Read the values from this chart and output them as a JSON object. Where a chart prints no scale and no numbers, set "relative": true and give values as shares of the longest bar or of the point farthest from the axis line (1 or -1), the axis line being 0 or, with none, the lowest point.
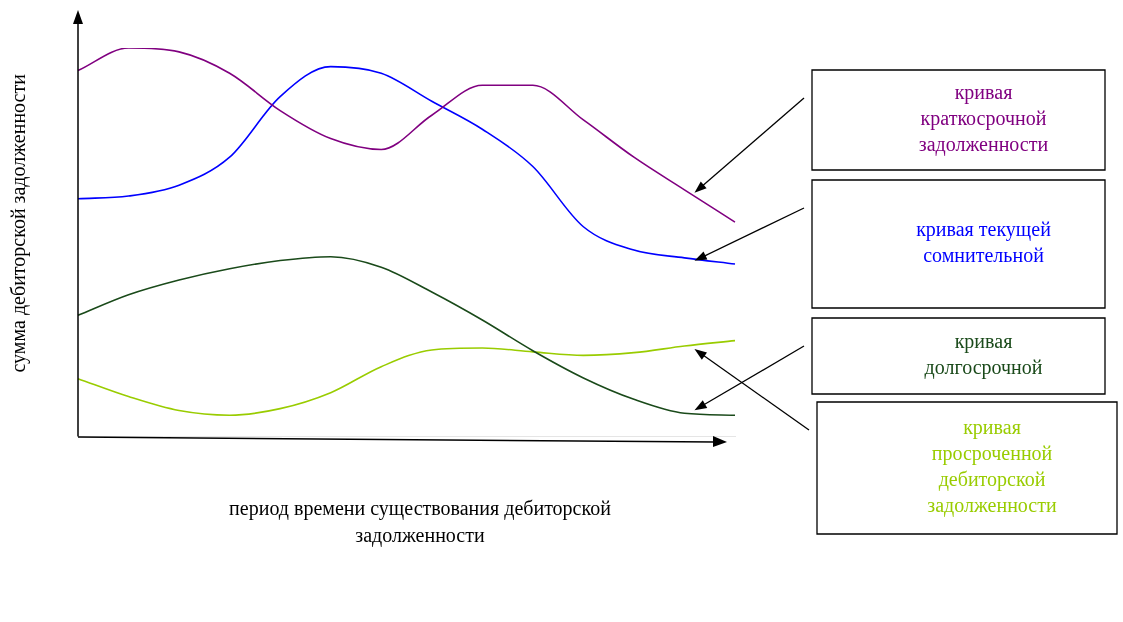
{
  "chart_data": {
    "type": "line",
    "relative": true,
    "ylabel": "сумма дебиторской задолженности",
    "xlabel": "период времени существования дебиторской задолженности",
    "categories": [
      null,
      null,
      null,
      null,
      null,
      null,
      null,
      null,
      null,
      null,
      null,
      null,
      null,
      null
    ],
    "grid": false,
    "legend": false,
    "marker": "none",
    "series": [
      {
        "name": "кривая краткосрочной задолженности",
        "color": "#800080",
        "values": [
          0.942,
          1,
          0.99,
          0.935,
          0.839,
          0.767,
          0.739,
          0.827,
          0.904,
          0.904,
          0.815,
          0.719,
          0.635,
          0.552
        ]
      },
      {
        "name": "кривая текущей сомнительной",
        "color": "#0000ff",
        "values": [
          0.612,
          0.619,
          0.647,
          0.719,
          0.875,
          0.952,
          0.935,
          0.863,
          0.791,
          0.695,
          0.54,
          0.48,
          0.46,
          0.444
        ]
      },
      {
        "name": "кривая долгосрочной",
        "color": "#1a4a1a",
        "values": [
          0.312,
          0.365,
          0.403,
          0.432,
          0.453,
          0.463,
          0.436,
          0.372,
          0.3,
          0.221,
          0.151,
          0.096,
          0.06,
          0.055
        ]
      },
      {
        "name": "кривая просроченной дебиторской задолженности",
        "color": "#99cc00",
        "values": [
          0.149,
          0.103,
          0.067,
          0.055,
          0.072,
          0.113,
          0.18,
          0.223,
          0.228,
          0.218,
          0.209,
          0.216,
          0.233,
          0.247
        ]
      }
    ]
  }
}
